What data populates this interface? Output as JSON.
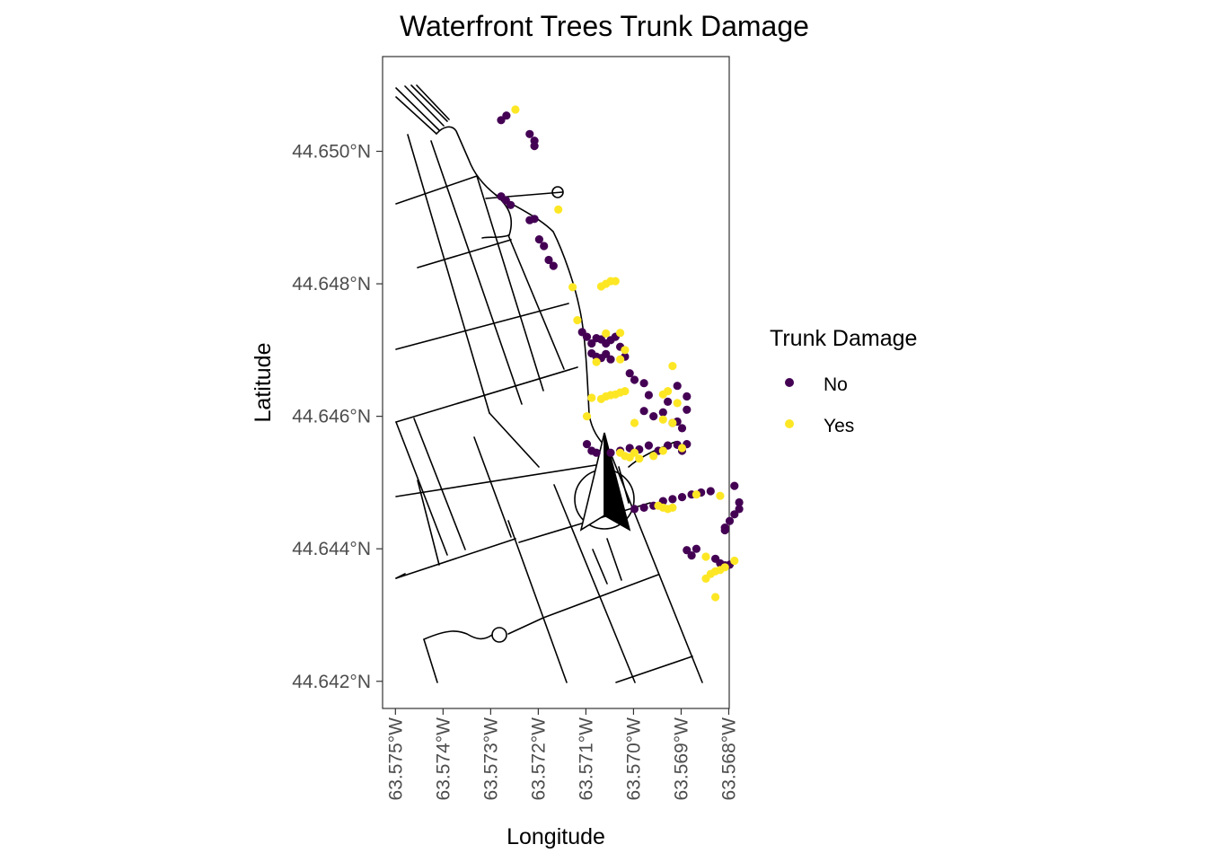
{
  "title": "Waterfront Trees Trunk Damage",
  "axes": {
    "x": {
      "label": "Longitude",
      "tick_labels": [
        "63.575°W",
        "63.574°W",
        "63.573°W",
        "63.572°W",
        "63.571°W",
        "63.570°W",
        "63.569°W",
        "63.568°W"
      ],
      "ticks": [
        -63.575,
        -63.574,
        -63.573,
        -63.572,
        -63.571,
        -63.57,
        -63.569,
        -63.568
      ],
      "range": [
        -63.57527,
        -63.56799
      ]
    },
    "y": {
      "label": "Latitude",
      "tick_labels": [
        "44.650°N",
        "44.648°N",
        "44.646°N",
        "44.644°N",
        "44.642°N"
      ],
      "ticks": [
        44.65,
        44.648,
        44.646,
        44.644,
        44.642
      ],
      "range": [
        44.64159,
        44.65143
      ]
    }
  },
  "legend": {
    "title": "Trunk Damage",
    "entries": [
      {
        "label": "No",
        "color": "#440154"
      },
      {
        "label": "Yes",
        "color": "#FDE725"
      }
    ]
  },
  "colors": {
    "no": "#440154",
    "yes": "#FDE725",
    "street": "#000000",
    "panel_border": "#333333"
  },
  "icons": [
    "north-arrow-icon"
  ],
  "chart_data": {
    "type": "scatter",
    "title": "Waterfront Trees Trunk Damage",
    "xlabel": "Longitude",
    "ylabel": "Latitude",
    "xlim": [
      -63.57527,
      -63.56799
    ],
    "ylim": [
      44.64159,
      44.65143
    ],
    "grid": false,
    "legend_position": "right",
    "series": [
      {
        "name": "No",
        "color": "#440154",
        "points": [
          [
            -63.57278,
            44.65047
          ],
          [
            -63.57267,
            44.65054
          ],
          [
            -63.57218,
            44.65026
          ],
          [
            -63.57208,
            44.65016
          ],
          [
            -63.57208,
            44.65008
          ],
          [
            -63.57278,
            44.64932
          ],
          [
            -63.57268,
            44.64926
          ],
          [
            -63.57258,
            44.64919
          ],
          [
            -63.57218,
            44.64896
          ],
          [
            -63.57208,
            44.64898
          ],
          [
            -63.57198,
            44.64867
          ],
          [
            -63.57188,
            44.64857
          ],
          [
            -63.57178,
            44.64836
          ],
          [
            -63.57168,
            44.64827
          ],
          [
            -63.57108,
            44.64727
          ],
          [
            -63.57098,
            44.6472
          ],
          [
            -63.57088,
            44.6471
          ],
          [
            -63.57078,
            44.64718
          ],
          [
            -63.57068,
            44.64716
          ],
          [
            -63.57058,
            44.6471
          ],
          [
            -63.57048,
            44.64715
          ],
          [
            -63.57088,
            44.64695
          ],
          [
            -63.57078,
            44.6469
          ],
          [
            -63.57068,
            44.64688
          ],
          [
            -63.57058,
            44.64694
          ],
          [
            -63.57048,
            44.64686
          ],
          [
            -63.57038,
            44.6472
          ],
          [
            -63.57028,
            44.64705
          ],
          [
            -63.57018,
            44.6469
          ],
          [
            -63.57008,
            44.64665
          ],
          [
            -63.56998,
            44.64655
          ],
          [
            -63.56978,
            44.6465
          ],
          [
            -63.56968,
            44.64632
          ],
          [
            -63.56928,
            44.64622
          ],
          [
            -63.56908,
            44.64646
          ],
          [
            -63.56888,
            44.6463
          ],
          [
            -63.56978,
            44.64608
          ],
          [
            -63.56958,
            44.646
          ],
          [
            -63.56938,
            44.64606
          ],
          [
            -63.56888,
            44.6461
          ],
          [
            -63.56918,
            44.6459
          ],
          [
            -63.56908,
            44.64592
          ],
          [
            -63.56898,
            44.64582
          ],
          [
            -63.57098,
            44.64558
          ],
          [
            -63.57088,
            44.64548
          ],
          [
            -63.57078,
            44.64545
          ],
          [
            -63.57048,
            44.64545
          ],
          [
            -63.57028,
            44.64548
          ],
          [
            -63.57008,
            44.64552
          ],
          [
            -63.56988,
            44.6455
          ],
          [
            -63.56968,
            44.64556
          ],
          [
            -63.56948,
            44.64548
          ],
          [
            -63.56928,
            44.64556
          ],
          [
            -63.56908,
            44.64557
          ],
          [
            -63.56898,
            44.64548
          ],
          [
            -63.56888,
            44.64558
          ],
          [
            -63.56998,
            44.6446
          ],
          [
            -63.56978,
            44.64462
          ],
          [
            -63.56958,
            44.64465
          ],
          [
            -63.56938,
            44.64472
          ],
          [
            -63.56918,
            44.64475
          ],
          [
            -63.56898,
            44.64478
          ],
          [
            -63.56878,
            44.64482
          ],
          [
            -63.56858,
            44.64485
          ],
          [
            -63.56838,
            44.64487
          ],
          [
            -63.56788,
            44.64495
          ],
          [
            -63.56778,
            44.6447
          ],
          [
            -63.56778,
            44.6446
          ],
          [
            -63.56788,
            44.64452
          ],
          [
            -63.56798,
            44.64442
          ],
          [
            -63.56808,
            44.64432
          ],
          [
            -63.56808,
            44.64428
          ],
          [
            -63.56878,
            44.6439
          ],
          [
            -63.56888,
            44.64398
          ],
          [
            -63.56868,
            44.644
          ],
          [
            -63.56828,
            44.64385
          ],
          [
            -63.56818,
            44.64378
          ],
          [
            -63.56808,
            44.64375
          ],
          [
            -63.56798,
            44.64376
          ]
        ]
      },
      {
        "name": "Yes",
        "color": "#FDE725",
        "points": [
          [
            -63.57248,
            44.65063
          ],
          [
            -63.57158,
            44.64912
          ],
          [
            -63.57068,
            44.64796
          ],
          [
            -63.57058,
            44.648
          ],
          [
            -63.57048,
            44.64804
          ],
          [
            -63.57038,
            44.64804
          ],
          [
            -63.57128,
            44.64795
          ],
          [
            -63.57118,
            44.64745
          ],
          [
            -63.57058,
            44.64725
          ],
          [
            -63.57028,
            44.64726
          ],
          [
            -63.57018,
            44.647
          ],
          [
            -63.57028,
            44.64686
          ],
          [
            -63.57078,
            44.64682
          ],
          [
            -63.56918,
            44.64676
          ],
          [
            -63.56938,
            44.64633
          ],
          [
            -63.56928,
            44.64638
          ],
          [
            -63.56908,
            44.6462
          ],
          [
            -63.57088,
            44.64628
          ],
          [
            -63.57068,
            44.64626
          ],
          [
            -63.57058,
            44.6463
          ],
          [
            -63.57048,
            44.64632
          ],
          [
            -63.57038,
            44.64633
          ],
          [
            -63.57028,
            44.64636
          ],
          [
            -63.57018,
            44.64638
          ],
          [
            -63.57098,
            44.646
          ],
          [
            -63.56998,
            44.6459
          ],
          [
            -63.56938,
            44.64595
          ],
          [
            -63.56918,
            44.6459
          ],
          [
            -63.57028,
            44.64545
          ],
          [
            -63.57018,
            44.6454
          ],
          [
            -63.57008,
            44.64538
          ],
          [
            -63.56998,
            44.64545
          ],
          [
            -63.56988,
            44.64536
          ],
          [
            -63.56958,
            44.6454
          ],
          [
            -63.56938,
            44.64548
          ],
          [
            -63.56898,
            44.64552
          ],
          [
            -63.56948,
            44.64465
          ],
          [
            -63.56938,
            44.64462
          ],
          [
            -63.56928,
            44.6446
          ],
          [
            -63.56918,
            44.64462
          ],
          [
            -63.56868,
            44.64482
          ],
          [
            -63.56818,
            44.6448
          ],
          [
            -63.56848,
            44.64388
          ],
          [
            -63.56838,
            44.64362
          ],
          [
            -63.56828,
            44.64366
          ],
          [
            -63.56818,
            44.64368
          ],
          [
            -63.56808,
            44.64372
          ],
          [
            -63.56848,
            44.64355
          ],
          [
            -63.56828,
            44.64327
          ],
          [
            -63.56788,
            44.64382
          ]
        ]
      }
    ]
  }
}
